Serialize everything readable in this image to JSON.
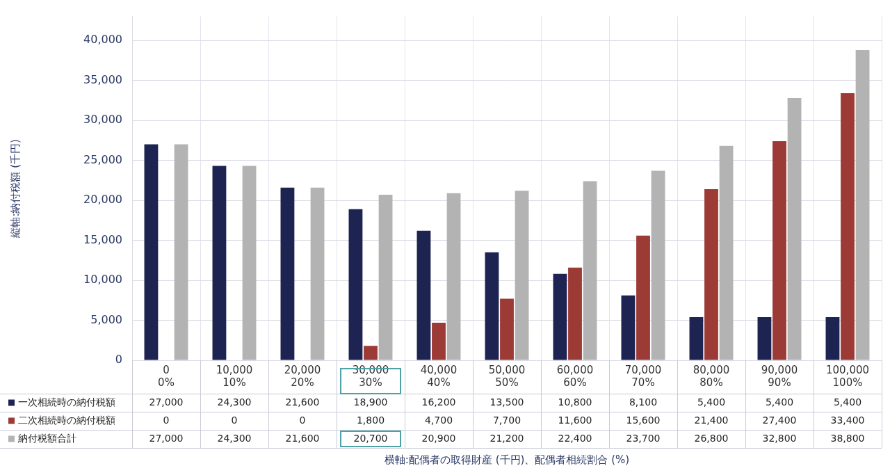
{
  "chart_data": {
    "type": "bar",
    "y_label": "縦軸:納付税額 (千円)",
    "x_label": "横軸:配偶者の取得財産 (千円)、配偶者相続割合 (%)",
    "categories": [
      [
        "0",
        "0%"
      ],
      [
        "10,000",
        "10%"
      ],
      [
        "20,000",
        "20%"
      ],
      [
        "30,000",
        "30%"
      ],
      [
        "40,000",
        "40%"
      ],
      [
        "50,000",
        "50%"
      ],
      [
        "60,000",
        "60%"
      ],
      [
        "70,000",
        "70%"
      ],
      [
        "80,000",
        "80%"
      ],
      [
        "90,000",
        "90%"
      ],
      [
        "100,000",
        "100%"
      ]
    ],
    "series": [
      {
        "name": "一次相続時の納付税額",
        "color": "#1d2451",
        "values": [
          27000,
          24300,
          21600,
          18900,
          16200,
          13500,
          10800,
          8100,
          5400,
          5400,
          5400
        ],
        "value_labels": [
          "27,000",
          "24,300",
          "21,600",
          "18,900",
          "16,200",
          "13,500",
          "10,800",
          "8,100",
          "5,400",
          "5,400",
          "5,400"
        ]
      },
      {
        "name": "二次相続時の納付税額",
        "color": "#9c3b36",
        "values": [
          0,
          0,
          0,
          1800,
          4700,
          7700,
          11600,
          15600,
          21400,
          27400,
          33400
        ],
        "value_labels": [
          "0",
          "0",
          "0",
          "1,800",
          "4,700",
          "7,700",
          "11,600",
          "15,600",
          "21,400",
          "27,400",
          "33,400"
        ]
      },
      {
        "name": "納付税額合計",
        "color": "#b3b3b3",
        "values": [
          27000,
          24300,
          21600,
          20700,
          20900,
          21200,
          22400,
          23700,
          26800,
          32800,
          38800
        ],
        "value_labels": [
          "27,000",
          "24,300",
          "21,600",
          "20,700",
          "20,900",
          "21,200",
          "22,400",
          "23,700",
          "26,800",
          "32,800",
          "38,800"
        ]
      }
    ],
    "ylim": [
      0,
      43000
    ],
    "yticks": [
      0,
      {
        "value": 5000,
        "label": "5,000"
      },
      {
        "value": 10000,
        "label": "10,000"
      },
      {
        "value": 15000,
        "label": "15,000"
      },
      {
        "value": 20000,
        "label": "20,000"
      },
      {
        "value": 25000,
        "label": "25,000"
      },
      {
        "value": 30000,
        "label": "30,000"
      },
      {
        "value": 35000,
        "label": "35,000"
      },
      {
        "value": 40000,
        "label": "40,000"
      }
    ],
    "grid": true
  }
}
